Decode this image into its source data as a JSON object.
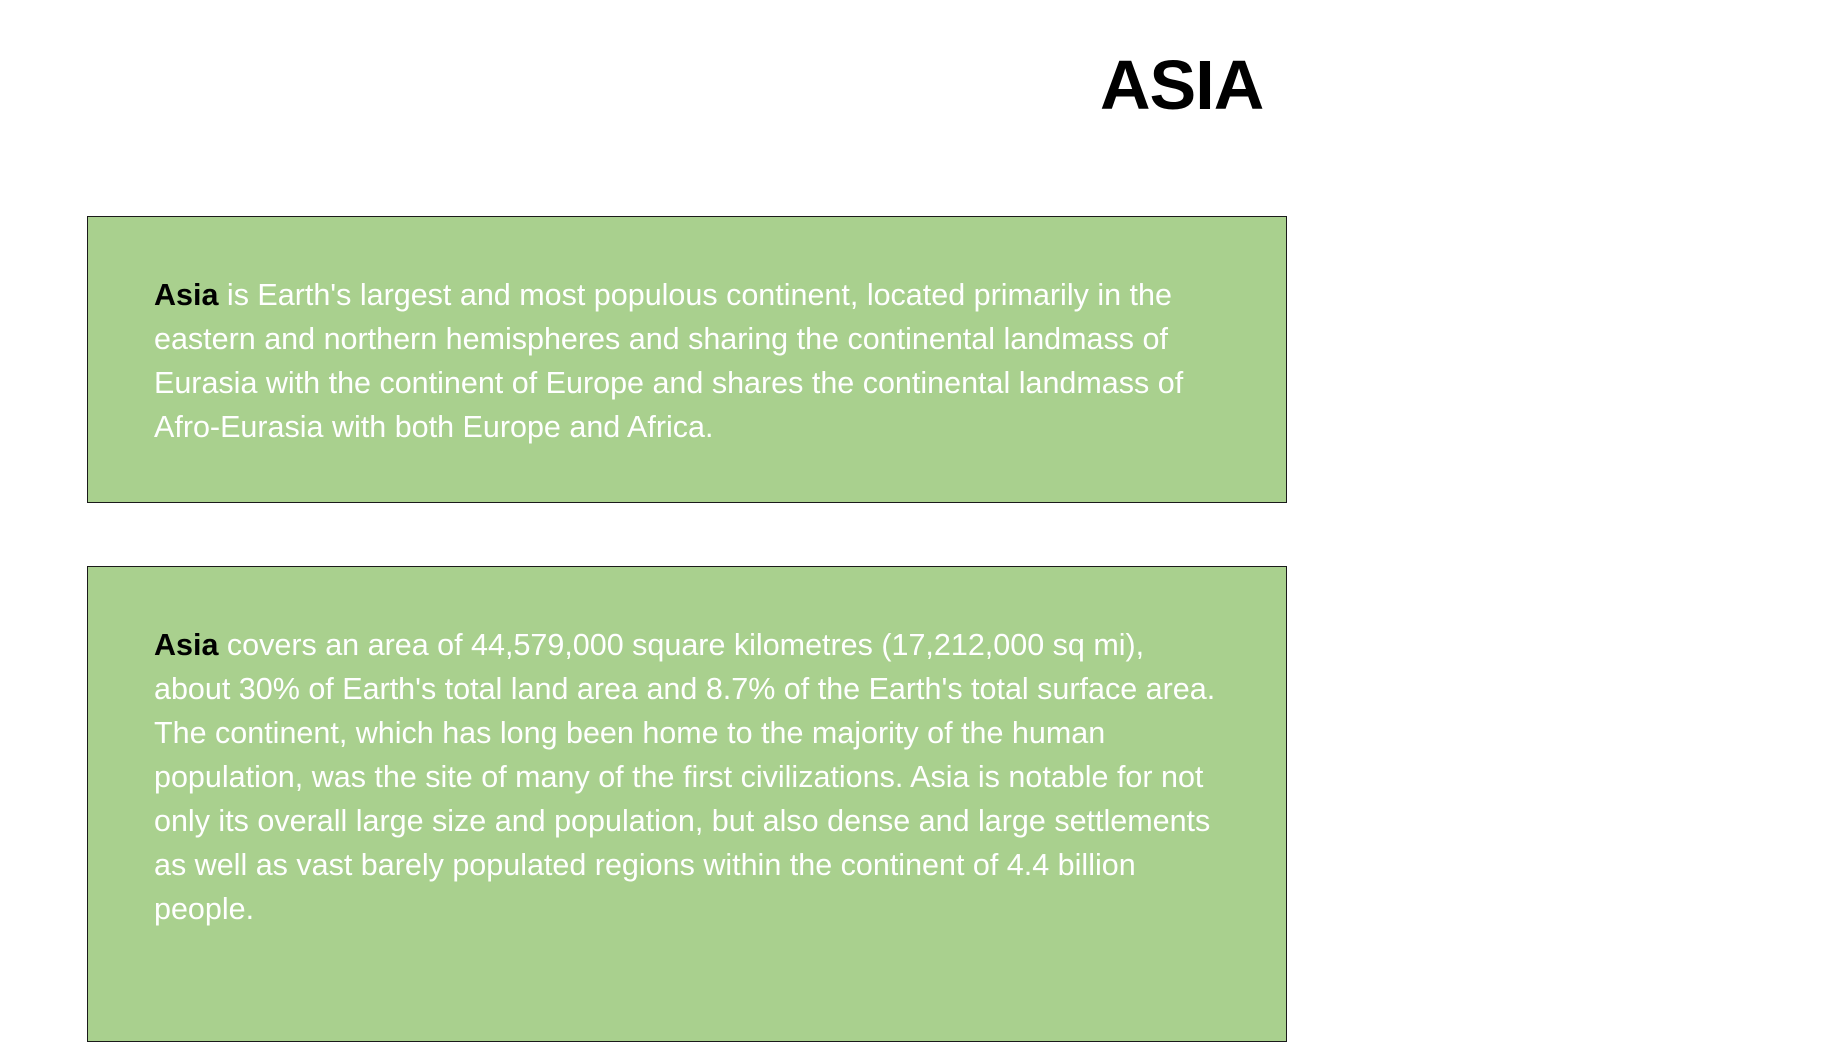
{
  "title": "ASIA",
  "boxes": [
    {
      "lead": "Asia",
      "text": " is Earth's largest and most populous continent, located primarily in the eastern and northern hemispheres and sharing the continental landmass of Eurasia with the continent of Europe and shares the continental landmass of Afro-Eurasia with both Europe and Africa."
    },
    {
      "lead": "Asia",
      "text": " covers an area of 44,579,000 square kilometres (17,212,000 sq mi), about 30% of Earth's total land area and 8.7% of the Earth's total surface area. The continent, which has long been home to the majority of the human population, was the site of many of the first civilizations. Asia is notable for not only its overall large size and population, but also dense and large settlements as well as vast barely populated regions within the continent of 4.4 billion people."
    }
  ],
  "colors": {
    "box_background": "#a9d08e",
    "box_border": "#1a1a1a",
    "body_text": "#ffffff",
    "lead_text": "#000000"
  }
}
